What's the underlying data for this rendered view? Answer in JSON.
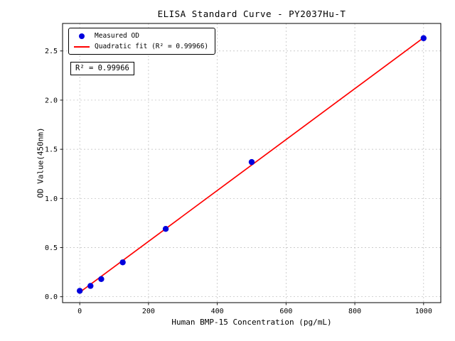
{
  "chart_data": {
    "type": "scatter",
    "title": "ELISA Standard Curve - PY2037Hu-T",
    "xlabel": "Human BMP-15 Concentration (pg/mL)",
    "ylabel": "OD Value(450nm)",
    "xlim": [
      -50,
      1050
    ],
    "ylim": [
      -0.06,
      2.78
    ],
    "xticks": [
      0,
      200,
      400,
      600,
      800,
      1000
    ],
    "xtick_labels": [
      "0",
      "200",
      "400",
      "600",
      "800",
      "1000"
    ],
    "yticks": [
      0.0,
      0.5,
      1.0,
      1.5,
      2.0,
      2.5
    ],
    "ytick_labels": [
      "0.0",
      "0.5",
      "1.0",
      "1.5",
      "2.0",
      "2.5"
    ],
    "grid": true,
    "legend_position": "upper-left",
    "series": [
      {
        "name": "Measured OD",
        "type": "scatter",
        "color": "#0000dd",
        "x": [
          0,
          31.2,
          62.5,
          125,
          250,
          500,
          1000
        ],
        "y": [
          0.06,
          0.11,
          0.18,
          0.35,
          0.69,
          1.37,
          2.63
        ]
      },
      {
        "name": "Quadratic fit (R² = 0.99966)",
        "type": "line",
        "color": "#ff0000",
        "x": [
          0,
          1000
        ],
        "y": [
          0.045,
          2.635
        ]
      }
    ],
    "annotation": "R² = 0.99966"
  },
  "colors": {
    "point": "#0000dd",
    "fit_line": "#ff0000",
    "grid": "#bbbbbb",
    "axis": "#000000"
  }
}
